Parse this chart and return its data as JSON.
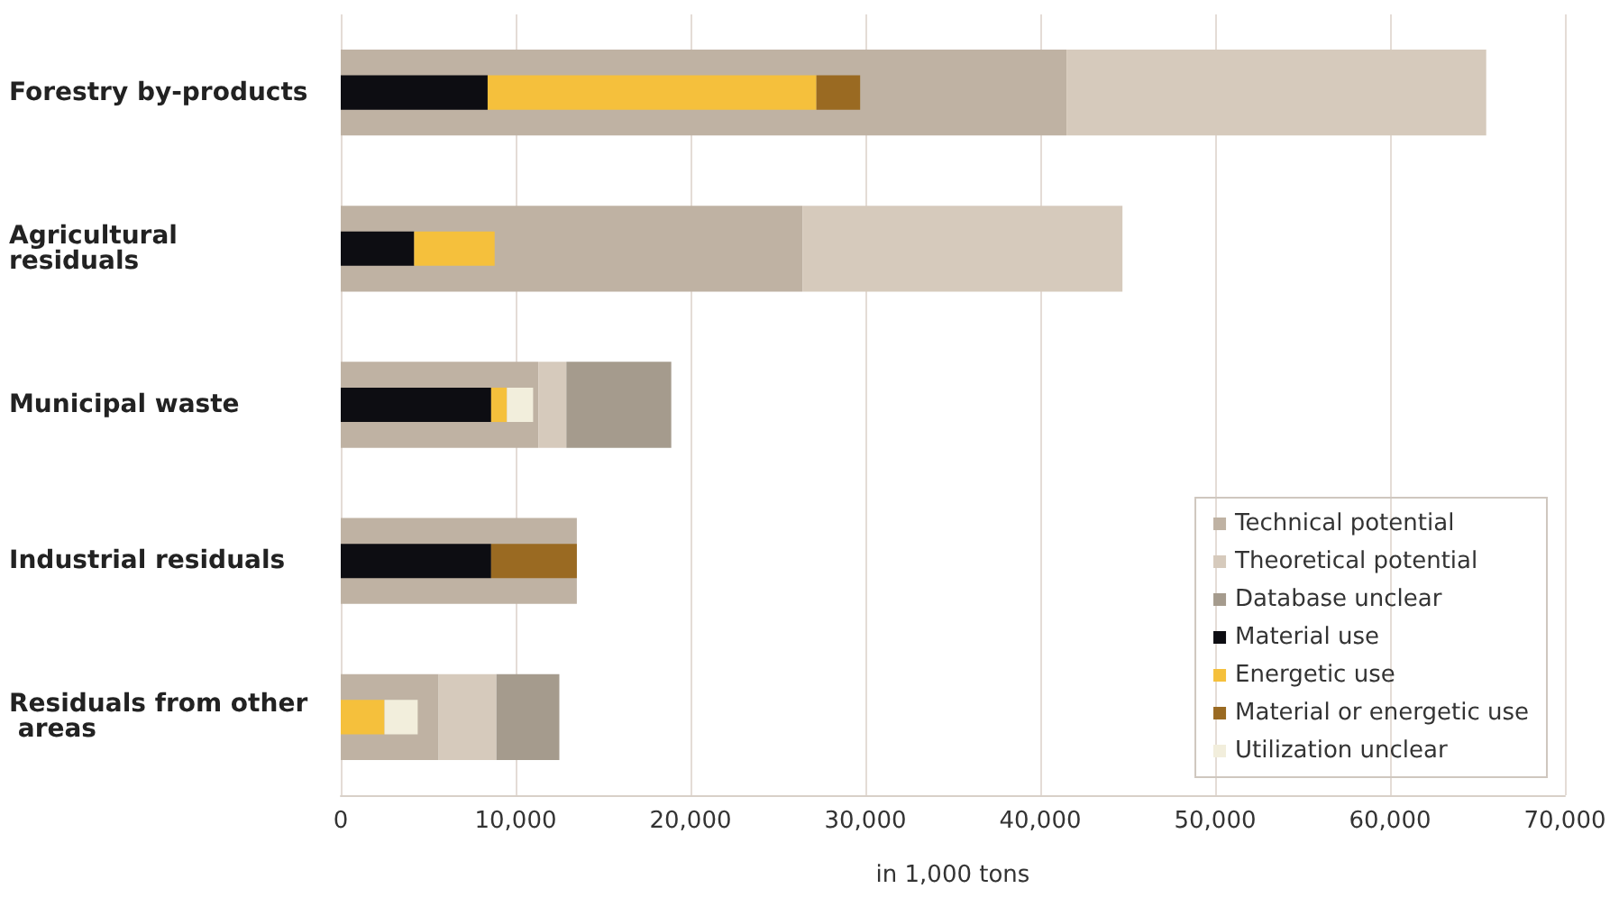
{
  "chart_data": {
    "type": "bar",
    "orientation": "horizontal",
    "xlabel": "in 1,000 tons",
    "categories": [
      "Forestry by-products",
      "Agricultural residuals",
      "Municipal waste",
      "Industrial residuals",
      "Residuals from other areas"
    ],
    "series": [
      {
        "name": "Technical potential",
        "color": "#bfb2a3",
        "values": [
          41500,
          26400,
          11300,
          13500,
          5600
        ],
        "base": [
          0,
          0,
          0,
          0,
          0
        ]
      },
      {
        "name": "Theoretical potential",
        "color": "#d6cabc",
        "values": [
          24000,
          18300,
          1600,
          null,
          3300
        ],
        "base": [
          41500,
          26400,
          11300,
          null,
          5600
        ]
      },
      {
        "name": "Database unclear",
        "color": "#a59b8d",
        "values": [
          null,
          null,
          6000,
          null,
          3600
        ],
        "base": [
          null,
          null,
          12900,
          null,
          8900
        ]
      },
      {
        "name": "Material use",
        "color": "#0d0d12",
        "axis": "y2",
        "values": [
          8400,
          4200,
          8600,
          8600,
          null
        ],
        "base": [
          0,
          0,
          0,
          0,
          null
        ]
      },
      {
        "name": "Energetic use",
        "color": "#f5c03c",
        "axis": "y2",
        "values": [
          18800,
          4600,
          900,
          null,
          2500
        ],
        "base": [
          8400,
          4200,
          8600,
          null,
          0
        ]
      },
      {
        "name": "Material or energetic use",
        "color": "#9a6a22",
        "axis": "y2",
        "values": [
          2500,
          null,
          null,
          4900,
          null
        ],
        "base": [
          27200,
          null,
          null,
          8600,
          null
        ]
      },
      {
        "name": "Utilization unclear",
        "color": "#f2eedc",
        "axis": "y2",
        "values": [
          null,
          null,
          1500,
          null,
          1900
        ],
        "base": [
          null,
          null,
          9500,
          null,
          2500
        ]
      }
    ],
    "xlim": [
      0,
      70000
    ],
    "xticks": [
      {
        "value": 0,
        "label": "0"
      },
      {
        "value": 10000,
        "label": "10,000"
      },
      {
        "value": 20000,
        "label": "20,000"
      },
      {
        "value": 30000,
        "label": "30,000"
      },
      {
        "value": 40000,
        "label": "40,000"
      },
      {
        "value": 50000,
        "label": "50,000"
      },
      {
        "value": 60000,
        "label": "60,000"
      },
      {
        "value": 70000,
        "label": "70,000"
      }
    ],
    "grid": "x",
    "legend": "bottom right"
  }
}
